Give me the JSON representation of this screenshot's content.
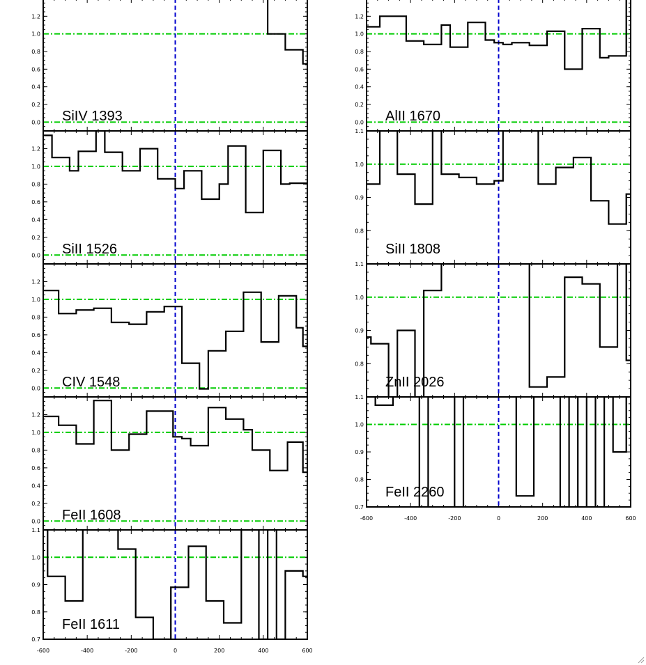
{
  "chart_data": [
    {
      "type": "line",
      "step": true,
      "label": "SiIV 1393",
      "xlim": [
        -600,
        600
      ],
      "ylim": [
        -0.1,
        1.4
      ],
      "yticks": [
        "0.0",
        "0.2",
        "0.4",
        "0.6",
        "0.8",
        "1.0",
        "1.2"
      ],
      "ytick_values": [
        0,
        0.2,
        0.4,
        0.6,
        0.8,
        1.0,
        1.2
      ],
      "xticks": [],
      "reference_lines": {
        "y": [
          0,
          1
        ],
        "x": [
          0
        ]
      },
      "x": [
        -420,
        -380,
        -340,
        -300,
        -260,
        -220,
        -180,
        -140,
        -100,
        -60,
        -20,
        20,
        60,
        100,
        140,
        180,
        220,
        260,
        300,
        340,
        380,
        420,
        460,
        500,
        540,
        580
      ],
      "y": [
        null,
        null,
        null,
        null,
        null,
        null,
        null,
        null,
        null,
        null,
        null,
        null,
        null,
        1.4,
        1.4,
        1.4,
        1.4,
        1.4,
        1.4,
        1.4,
        1.4,
        1.0,
        1.0,
        0.82,
        0.82,
        0.66
      ]
    },
    {
      "type": "line",
      "step": true,
      "label": "AlII 1670",
      "xlim": [
        -600,
        600
      ],
      "ylim": [
        -0.1,
        1.4
      ],
      "yticks": [
        "0.0",
        "0.2",
        "0.4",
        "0.6",
        "0.8",
        "1.0",
        "1.2"
      ],
      "ytick_values": [
        0,
        0.2,
        0.4,
        0.6,
        0.8,
        1.0,
        1.2
      ],
      "xticks": [],
      "reference_lines": {
        "y": [
          0,
          1
        ],
        "x": [
          0
        ]
      },
      "x": [
        -600,
        -570,
        -540,
        -500,
        -460,
        -420,
        -380,
        -340,
        -300,
        -260,
        -220,
        -180,
        -140,
        -100,
        -60,
        -20,
        20,
        60,
        100,
        140,
        180,
        220,
        260,
        300,
        340,
        380,
        420,
        460,
        500,
        540,
        580
      ],
      "y": [
        1.08,
        1.08,
        1.2,
        1.2,
        1.2,
        0.92,
        0.92,
        0.88,
        0.88,
        1.1,
        0.85,
        0.85,
        1.13,
        1.13,
        0.93,
        0.9,
        0.88,
        0.9,
        0.9,
        0.87,
        0.87,
        1.03,
        1.03,
        0.6,
        0.6,
        1.06,
        1.06,
        0.73,
        0.75,
        0.75,
        1.4
      ]
    },
    {
      "type": "line",
      "step": true,
      "label": "SiII 1526",
      "xlim": [
        -600,
        600
      ],
      "ylim": [
        -0.1,
        1.4
      ],
      "yticks": [
        "0.0",
        "0.2",
        "0.4",
        "0.6",
        "0.8",
        "1.0",
        "1.2"
      ],
      "ytick_values": [
        0,
        0.2,
        0.4,
        0.6,
        0.8,
        1.0,
        1.2
      ],
      "xticks": [],
      "reference_lines": {
        "y": [
          0,
          1
        ],
        "x": [
          0
        ]
      },
      "x": [
        -600,
        -560,
        -520,
        -480,
        -440,
        -400,
        -360,
        -320,
        -280,
        -240,
        -200,
        -160,
        -120,
        -80,
        -40,
        0,
        40,
        80,
        120,
        160,
        200,
        240,
        280,
        320,
        360,
        400,
        440,
        480,
        520,
        560
      ],
      "y": [
        1.35,
        1.1,
        1.1,
        0.95,
        1.17,
        1.17,
        1.4,
        1.16,
        1.16,
        0.95,
        0.95,
        1.2,
        1.2,
        0.86,
        0.86,
        0.75,
        0.95,
        0.95,
        0.63,
        0.63,
        0.8,
        1.23,
        1.23,
        0.48,
        0.48,
        1.18,
        1.18,
        0.8,
        0.81,
        0.81
      ]
    },
    {
      "type": "line",
      "step": true,
      "label": "SiII 1808",
      "xlim": [
        -600,
        600
      ],
      "ylim": [
        0.7,
        1.1
      ],
      "yticks": [
        "0.8",
        "0.9",
        "1.0",
        "1.1"
      ],
      "ytick_values": [
        0.8,
        0.9,
        1.0,
        1.1
      ],
      "xticks": [],
      "reference_lines": {
        "y": [
          1.0
        ],
        "x": [
          0
        ]
      },
      "x": [
        -600,
        -580,
        -540,
        -500,
        -460,
        -420,
        -380,
        -340,
        -300,
        -260,
        -220,
        -180,
        -140,
        -100,
        -60,
        -20,
        20,
        60,
        100,
        140,
        180,
        220,
        260,
        300,
        340,
        380,
        420,
        460,
        500,
        540,
        580
      ],
      "y": [
        0.94,
        0.94,
        1.1,
        1.1,
        0.97,
        0.97,
        0.88,
        0.88,
        1.1,
        0.97,
        0.97,
        0.96,
        0.96,
        0.94,
        0.94,
        0.95,
        1.1,
        1.1,
        1.1,
        1.1,
        0.94,
        0.94,
        0.99,
        0.99,
        1.02,
        1.02,
        0.89,
        0.89,
        0.82,
        0.82,
        0.91
      ]
    },
    {
      "type": "line",
      "step": true,
      "label": "CIV 1548",
      "xlim": [
        -600,
        600
      ],
      "ylim": [
        -0.1,
        1.4
      ],
      "yticks": [
        "0.0",
        "0.2",
        "0.4",
        "0.6",
        "0.8",
        "1.0",
        "1.2"
      ],
      "ytick_values": [
        0,
        0.2,
        0.4,
        0.6,
        0.8,
        1.0,
        1.2
      ],
      "xticks": [],
      "reference_lines": {
        "y": [
          0,
          1
        ],
        "x": [
          0
        ]
      },
      "x": [
        -600,
        -570,
        -530,
        -490,
        -450,
        -410,
        -370,
        -330,
        -290,
        -250,
        -210,
        -170,
        -130,
        -90,
        -50,
        -10,
        30,
        70,
        110,
        150,
        190,
        230,
        270,
        310,
        350,
        390,
        430,
        470,
        510,
        550,
        580
      ],
      "y": [
        1.1,
        1.1,
        0.84,
        0.84,
        0.88,
        0.88,
        0.9,
        0.9,
        0.74,
        0.74,
        0.72,
        0.72,
        0.86,
        0.86,
        0.92,
        0.92,
        0.28,
        0.28,
        -0.01,
        0.42,
        0.42,
        0.64,
        0.64,
        1.08,
        1.08,
        0.52,
        0.52,
        1.04,
        1.04,
        0.68,
        0.47
      ]
    },
    {
      "type": "line",
      "step": true,
      "label": "ZnII 2026",
      "xlim": [
        -600,
        600
      ],
      "ylim": [
        0.7,
        1.1
      ],
      "yticks": [
        "0.8",
        "0.9",
        "1.0",
        "1.1"
      ],
      "ytick_values": [
        0.8,
        0.9,
        1.0,
        1.1
      ],
      "xticks": [],
      "reference_lines": {
        "y": [
          1.0
        ],
        "x": [
          0
        ]
      },
      "x": [
        -600,
        -580,
        -540,
        -500,
        -460,
        -420,
        -380,
        -340,
        -300,
        -260,
        -220,
        -180,
        -140,
        -100,
        -60,
        -20,
        20,
        60,
        100,
        140,
        180,
        220,
        260,
        300,
        340,
        380,
        420,
        460,
        500,
        540,
        580
      ],
      "y": [
        0.88,
        0.86,
        0.86,
        0.7,
        0.9,
        0.9,
        0.7,
        1.02,
        1.02,
        1.1,
        1.1,
        1.1,
        1.1,
        1.1,
        1.1,
        1.1,
        1.1,
        1.1,
        1.1,
        0.73,
        0.73,
        0.76,
        0.76,
        1.06,
        1.06,
        1.04,
        1.04,
        0.85,
        0.85,
        1.1,
        0.81
      ]
    },
    {
      "type": "line",
      "step": true,
      "label": "FeII 1608",
      "xlim": [
        -600,
        600
      ],
      "ylim": [
        -0.1,
        1.4
      ],
      "yticks": [
        "0.0",
        "0.2",
        "0.4",
        "0.6",
        "0.8",
        "1.0",
        "1.2"
      ],
      "ytick_values": [
        0,
        0.2,
        0.4,
        0.6,
        0.8,
        1.0,
        1.2
      ],
      "xticks": [],
      "reference_lines": {
        "y": [
          0,
          1
        ],
        "x": [
          0
        ]
      },
      "x": [
        -600,
        -570,
        -530,
        -490,
        -450,
        -410,
        -370,
        -330,
        -290,
        -250,
        -210,
        -170,
        -130,
        -90,
        -50,
        -10,
        30,
        70,
        110,
        150,
        190,
        230,
        270,
        310,
        350,
        390,
        430,
        470,
        510,
        550,
        580
      ],
      "y": [
        1.18,
        1.18,
        1.08,
        1.08,
        0.87,
        0.87,
        1.36,
        1.36,
        0.8,
        0.8,
        0.98,
        0.98,
        1.24,
        1.24,
        1.24,
        0.95,
        0.93,
        0.85,
        0.85,
        1.28,
        1.28,
        1.15,
        1.15,
        1.03,
        0.8,
        0.8,
        0.57,
        0.57,
        0.89,
        0.89,
        0.55
      ]
    },
    {
      "type": "line",
      "step": true,
      "label": "FeII 2260",
      "xlim": [
        -600,
        600
      ],
      "ylim": [
        0.7,
        1.1
      ],
      "yticks": [
        "0.7",
        "0.8",
        "0.9",
        "1.0",
        "1.1"
      ],
      "ytick_values": [
        0.7,
        0.8,
        0.9,
        1.0,
        1.1
      ],
      "xticks": [
        "-600",
        "-400",
        "-200",
        "0",
        "200",
        "400",
        "600"
      ],
      "xtick_values": [
        -600,
        -400,
        -200,
        0,
        200,
        400,
        600
      ],
      "reference_lines": {
        "y": [
          1.0
        ],
        "x": [
          0
        ]
      },
      "x": [
        -600,
        -560,
        -520,
        -480,
        -440,
        -400,
        -360,
        -320,
        -280,
        -240,
        -200,
        -160,
        -120,
        -80,
        -40,
        0,
        40,
        80,
        120,
        160,
        200,
        240,
        280,
        320,
        360,
        400,
        440,
        480,
        520,
        560,
        580
      ],
      "y": [
        1.1,
        1.07,
        1.07,
        1.1,
        1.1,
        1.1,
        0.7,
        1.1,
        1.1,
        1.1,
        0.7,
        1.1,
        1.1,
        1.1,
        1.1,
        1.1,
        1.1,
        0.74,
        0.74,
        1.1,
        1.1,
        1.1,
        0.7,
        1.1,
        0.7,
        1.1,
        0.7,
        1.1,
        0.9,
        0.9,
        1.1
      ]
    },
    {
      "type": "line",
      "step": true,
      "label": "FeII 1611",
      "xlim": [
        -600,
        600
      ],
      "ylim": [
        0.7,
        1.1
      ],
      "yticks": [
        "0.7",
        "0.8",
        "0.9",
        "1.0",
        "1.1"
      ],
      "ytick_values": [
        0.7,
        0.8,
        0.9,
        1.0,
        1.1
      ],
      "xticks": [
        "-600",
        "-400",
        "-200",
        "0",
        "200",
        "400",
        "600"
      ],
      "xtick_values": [
        -600,
        -400,
        -200,
        0,
        200,
        400,
        600
      ],
      "reference_lines": {
        "y": [
          1.0
        ],
        "x": [
          0
        ]
      },
      "x": [
        -600,
        -580,
        -540,
        -500,
        -460,
        -420,
        -380,
        -340,
        -300,
        -260,
        -220,
        -180,
        -140,
        -100,
        -60,
        -20,
        20,
        60,
        100,
        140,
        180,
        220,
        260,
        300,
        340,
        380,
        420,
        460,
        500,
        540,
        580
      ],
      "y": [
        1.1,
        0.93,
        0.93,
        0.84,
        0.84,
        1.1,
        1.1,
        1.1,
        1.1,
        1.03,
        1.03,
        0.78,
        0.78,
        0.7,
        0.7,
        0.89,
        0.89,
        1.04,
        1.04,
        0.84,
        0.84,
        0.76,
        0.76,
        1.1,
        1.1,
        0.7,
        1.1,
        0.7,
        0.95,
        0.95,
        0.93
      ]
    }
  ],
  "colors": {
    "spectrum": "#000000",
    "continuum": "#00cc00",
    "zero_velocity": "#0000cc"
  },
  "icons": {
    "resize_grip": "resize-grip-icon"
  }
}
